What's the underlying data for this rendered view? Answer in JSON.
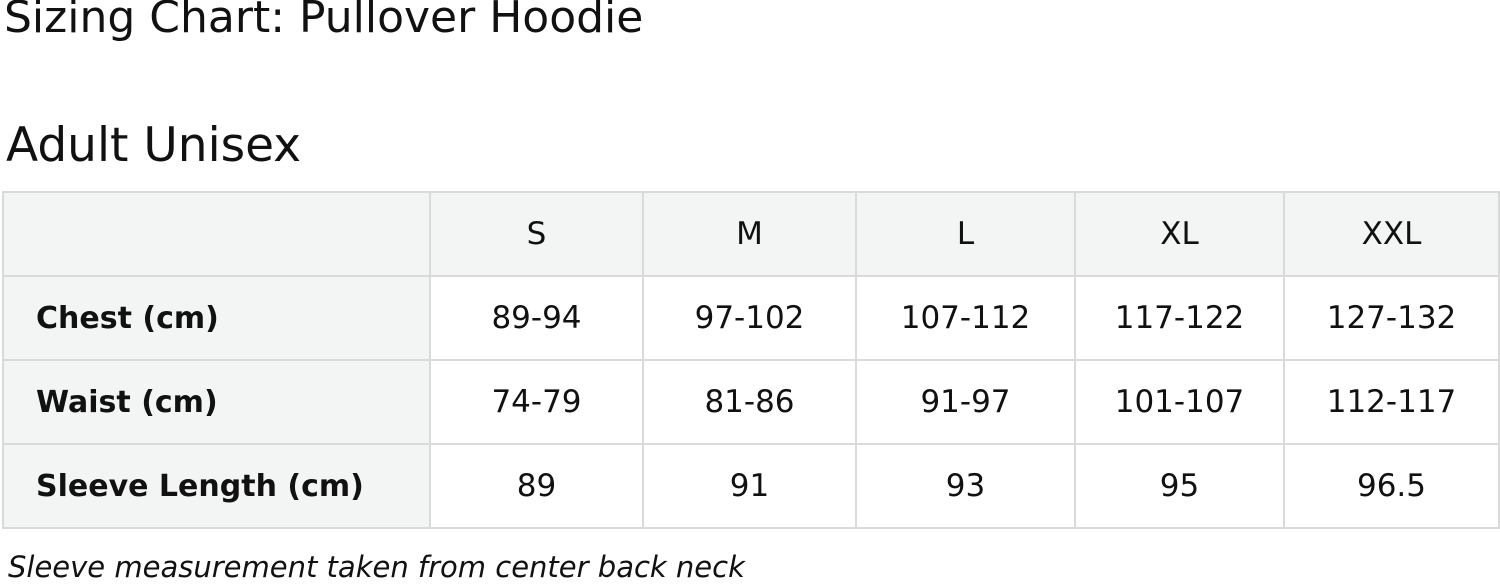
{
  "title": "Sizing Chart: Pullover Hoodie",
  "subtitle": "Adult Unisex",
  "table": {
    "sizes": [
      "S",
      "M",
      "L",
      "XL",
      "XXL"
    ],
    "rows": [
      {
        "label": "Chest (cm)",
        "values": [
          "89-94",
          "97-102",
          "107-112",
          "117-122",
          "127-132"
        ]
      },
      {
        "label": "Waist (cm)",
        "values": [
          "74-79",
          "81-86",
          "91-97",
          "101-107",
          "112-117"
        ]
      },
      {
        "label": "Sleeve Length (cm)",
        "values": [
          "89",
          "91",
          "93",
          "95",
          "96.5"
        ]
      }
    ]
  },
  "note": "Sleeve measurement taken from center back neck"
}
